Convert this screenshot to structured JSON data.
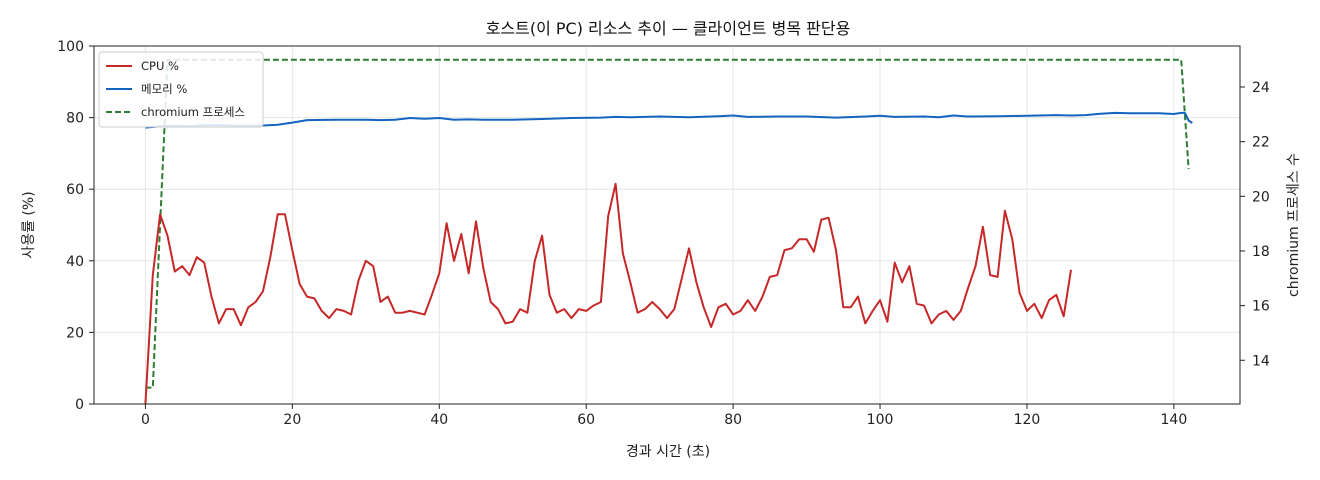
{
  "chart_data": {
    "type": "line",
    "title": "호스트(이 PC) 리소스 추이 — 클라이언트 병목 판단용",
    "xlabel": "경과 시간 (초)",
    "ylabel": "사용률 (%)",
    "y2label": "chromium 프로세스 수",
    "xlim": [
      -7,
      149
    ],
    "ylim": [
      0,
      100
    ],
    "y2lim": [
      12.4,
      25.5
    ],
    "x_ticks": [
      0,
      20,
      40,
      60,
      80,
      100,
      120,
      140
    ],
    "y_ticks": [
      0,
      20,
      40,
      60,
      80,
      100
    ],
    "y2_ticks": [
      14,
      16,
      18,
      20,
      22,
      24
    ],
    "grid": true,
    "legend_position": "top-left",
    "series": [
      {
        "name": "CPU %",
        "axis": "left",
        "color": "#c62828",
        "style": "solid",
        "points": [
          [
            0,
            0
          ],
          [
            1,
            36
          ],
          [
            2,
            53
          ],
          [
            3,
            47
          ],
          [
            4,
            37
          ],
          [
            5,
            38.5
          ],
          [
            6,
            36
          ],
          [
            7,
            41
          ],
          [
            8,
            39.5
          ],
          [
            9,
            30
          ],
          [
            10,
            22.5
          ],
          [
            11,
            26.5
          ],
          [
            12,
            26.5
          ],
          [
            13,
            22
          ],
          [
            14,
            27
          ],
          [
            15,
            28.5
          ],
          [
            16,
            31.5
          ],
          [
            17,
            41
          ],
          [
            18,
            53
          ],
          [
            19,
            53
          ],
          [
            20,
            43
          ],
          [
            21,
            33.5
          ],
          [
            22,
            30
          ],
          [
            23,
            29.5
          ],
          [
            24,
            26
          ],
          [
            25,
            24
          ],
          [
            26,
            26.5
          ],
          [
            27,
            26
          ],
          [
            28,
            25
          ],
          [
            29,
            34.5
          ],
          [
            30,
            40
          ],
          [
            31,
            38.5
          ],
          [
            32,
            28.5
          ],
          [
            33,
            30
          ],
          [
            34,
            25.5
          ],
          [
            35,
            25.5
          ],
          [
            36,
            26
          ],
          [
            37,
            25.5
          ],
          [
            38,
            25
          ],
          [
            39,
            30.5
          ],
          [
            40,
            36.5
          ],
          [
            41,
            50.5
          ],
          [
            42,
            40
          ],
          [
            43,
            47.5
          ],
          [
            44,
            36.5
          ],
          [
            45,
            51
          ],
          [
            46,
            38
          ],
          [
            47,
            28.5
          ],
          [
            48,
            26.5
          ],
          [
            49,
            22.5
          ],
          [
            50,
            23
          ],
          [
            51,
            26.5
          ],
          [
            52,
            25.5
          ],
          [
            53,
            40
          ],
          [
            54,
            47
          ],
          [
            55,
            30.5
          ],
          [
            56,
            25.5
          ],
          [
            57,
            26.5
          ],
          [
            58,
            24
          ],
          [
            59,
            26.5
          ],
          [
            60,
            26
          ],
          [
            61,
            27.5
          ],
          [
            62,
            28.5
          ],
          [
            63,
            52.5
          ],
          [
            64,
            61.5
          ],
          [
            65,
            42
          ],
          [
            66,
            34
          ],
          [
            67,
            25.5
          ],
          [
            68,
            26.5
          ],
          [
            69,
            28.5
          ],
          [
            70,
            26.5
          ],
          [
            71,
            24
          ],
          [
            72,
            26.5
          ],
          [
            73,
            35
          ],
          [
            74,
            43.5
          ],
          [
            75,
            34
          ],
          [
            76,
            27
          ],
          [
            77,
            21.5
          ],
          [
            78,
            27
          ],
          [
            79,
            28
          ],
          [
            80,
            25
          ],
          [
            81,
            26
          ],
          [
            82,
            29
          ],
          [
            83,
            26
          ],
          [
            84,
            30
          ],
          [
            85,
            35.5
          ],
          [
            86,
            36
          ],
          [
            87,
            43
          ],
          [
            88,
            43.5
          ],
          [
            89,
            46
          ],
          [
            90,
            46
          ],
          [
            91,
            42.5
          ],
          [
            92,
            51.5
          ],
          [
            93,
            52
          ],
          [
            94,
            43
          ],
          [
            95,
            27
          ],
          [
            96,
            27
          ],
          [
            97,
            30
          ],
          [
            98,
            22.5
          ],
          [
            99,
            26
          ],
          [
            100,
            29
          ],
          [
            101,
            23
          ],
          [
            102,
            39.5
          ],
          [
            103,
            34
          ],
          [
            104,
            38.5
          ],
          [
            105,
            28
          ],
          [
            106,
            27.5
          ],
          [
            107,
            22.5
          ],
          [
            108,
            25
          ],
          [
            109,
            26
          ],
          [
            110,
            23.5
          ],
          [
            111,
            26
          ],
          [
            112,
            32.5
          ],
          [
            113,
            38.5
          ],
          [
            114,
            49.5
          ],
          [
            115,
            36
          ],
          [
            116,
            35.5
          ],
          [
            117,
            54
          ],
          [
            118,
            46
          ],
          [
            119,
            31
          ],
          [
            120,
            26
          ],
          [
            121,
            28
          ],
          [
            122,
            24
          ],
          [
            123,
            29
          ],
          [
            124,
            30.5
          ],
          [
            125,
            24.5
          ],
          [
            126,
            37.5
          ]
        ]
      },
      {
        "name": "메모리 %",
        "axis": "left",
        "color": "#1565c0",
        "style": "solid",
        "points": [
          [
            0,
            77.2
          ],
          [
            2,
            77.6
          ],
          [
            4,
            77.8
          ],
          [
            6,
            77.6
          ],
          [
            8,
            77.9
          ],
          [
            10,
            77.9
          ],
          [
            12,
            77.8
          ],
          [
            14,
            77.8
          ],
          [
            16,
            77.8
          ],
          [
            18,
            78
          ],
          [
            20,
            78.6
          ],
          [
            22,
            79.3
          ],
          [
            26,
            79.4
          ],
          [
            30,
            79.4
          ],
          [
            32,
            79.3
          ],
          [
            34,
            79.4
          ],
          [
            36,
            79.9
          ],
          [
            38,
            79.7
          ],
          [
            40,
            79.9
          ],
          [
            42,
            79.4
          ],
          [
            44,
            79.5
          ],
          [
            46,
            79.4
          ],
          [
            50,
            79.4
          ],
          [
            54,
            79.6
          ],
          [
            58,
            79.9
          ],
          [
            62,
            80
          ],
          [
            64,
            80.2
          ],
          [
            66,
            80.1
          ],
          [
            70,
            80.3
          ],
          [
            74,
            80.1
          ],
          [
            78,
            80.4
          ],
          [
            80,
            80.6
          ],
          [
            82,
            80.2
          ],
          [
            86,
            80.3
          ],
          [
            90,
            80.3
          ],
          [
            94,
            80
          ],
          [
            98,
            80.3
          ],
          [
            100,
            80.5
          ],
          [
            102,
            80.2
          ],
          [
            106,
            80.3
          ],
          [
            108,
            80.1
          ],
          [
            110,
            80.6
          ],
          [
            112,
            80.3
          ],
          [
            116,
            80.4
          ],
          [
            120,
            80.5
          ],
          [
            124,
            80.7
          ],
          [
            126,
            80.6
          ],
          [
            128,
            80.7
          ],
          [
            130,
            81.1
          ],
          [
            132,
            81.3
          ],
          [
            134,
            81.2
          ],
          [
            136,
            81.2
          ],
          [
            138,
            81.2
          ],
          [
            140,
            81.0
          ],
          [
            141,
            81.3
          ],
          [
            141.5,
            81.3
          ],
          [
            142,
            79.2
          ],
          [
            142.5,
            78.5
          ]
        ]
      },
      {
        "name": "chromium 프로세스",
        "axis": "right",
        "color": "#2e7d32",
        "style": "dashed",
        "points": [
          [
            0,
            13
          ],
          [
            1,
            13
          ],
          [
            3,
            25
          ],
          [
            140,
            25
          ],
          [
            141,
            25
          ],
          [
            142,
            21
          ]
        ]
      }
    ]
  }
}
